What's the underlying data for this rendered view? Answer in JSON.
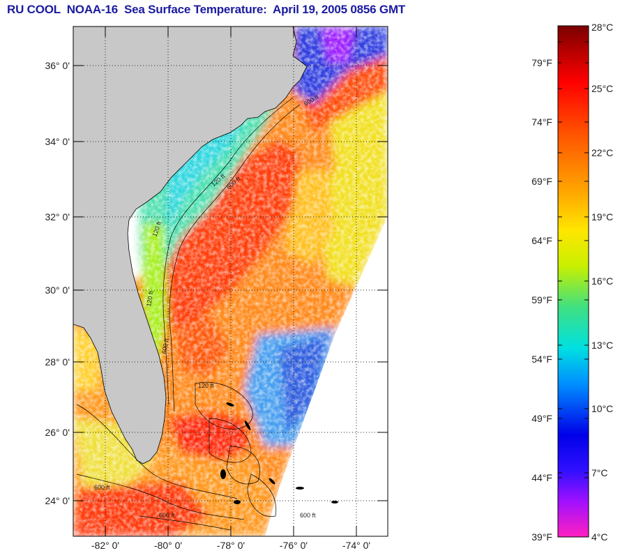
{
  "title": "RU COOL  NOAA-16  Sea Surface Temperature:  April 19, 2005 0856 GMT",
  "map": {
    "lat_labels": [
      "36° 0'",
      "34° 0'",
      "32° 0'",
      "30° 0'",
      "28° 0'",
      "26° 0'",
      "24° 0'"
    ],
    "lon_labels": [
      "-82° 0'",
      "-80° 0'",
      "-78° 0'",
      "-76° 0'",
      "-74° 0'"
    ],
    "contour_labels": [
      "600 ft",
      "120 ft",
      "600 ft",
      "120 ft",
      "120 ft",
      "600 ft",
      "120 ft",
      "600 ft",
      "600 ft",
      "600 ft"
    ],
    "land_color": "#c8c8c8",
    "no_data_color": "#ffffff"
  },
  "colorbar": {
    "fahrenheit_labels": [
      "79°F",
      "74°F",
      "69°F",
      "64°F",
      "59°F",
      "54°F",
      "49°F",
      "44°F",
      "39°F"
    ],
    "celsius_labels": [
      "28°C",
      "25°C",
      "22°C",
      "19°C",
      "16°C",
      "13°C",
      "10°C",
      "7°C",
      "4°C"
    ],
    "colors": [
      "#7a0000",
      "#ff0000",
      "#ff6a00",
      "#ffd400",
      "#c8f000",
      "#40e080",
      "#00e0e0",
      "#0070ff",
      "#0000e0",
      "#8000ff",
      "#ff20c0"
    ]
  },
  "icons": {
    "map": "sea-surface-temperature-map",
    "colorbar": "temperature-color-scale"
  }
}
